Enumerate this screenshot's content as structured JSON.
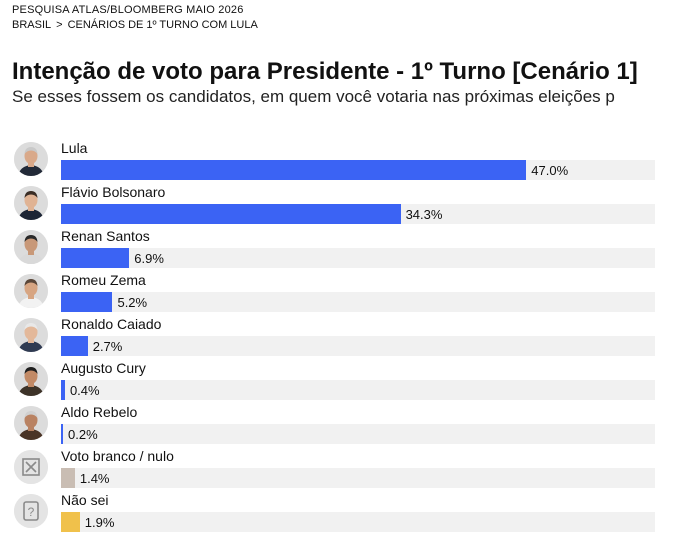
{
  "header": {
    "kicker": "PESQUISA ATLAS/BLOOMBERG MAIO 2026",
    "breadcrumb": [
      "BRASIL",
      ">",
      "CENÁRIOS DE 1º TURNO COM LULA"
    ]
  },
  "colors": {
    "candidate_bar": "#3b63f4",
    "blank_null_bar": "#c9bdb3",
    "dont_know_bar": "#f0c14b",
    "track": "#f1f1f1"
  },
  "chart_data": {
    "type": "bar",
    "orientation": "horizontal",
    "title": "Intenção de voto para Presidente - 1º Turno [Cenário 1]",
    "subtitle": "Se esses fossem os candidatos, em quem você votaria nas próximas eleições p",
    "unit": "%",
    "xlim": [
      0,
      60
    ],
    "grid": false,
    "legend": "none",
    "categories": [
      "Lula",
      "Flávio Bolsonaro",
      "Renan Santos",
      "Romeu Zema",
      "Ronaldo Caiado",
      "Augusto Cury",
      "Aldo Rebelo",
      "Voto branco / nulo",
      "Não sei"
    ],
    "values": [
      47.0,
      34.3,
      6.9,
      5.2,
      2.7,
      0.4,
      0.2,
      1.4,
      1.9
    ],
    "value_labels": [
      "47.0%",
      "34.3%",
      "6.9%",
      "5.2%",
      "2.7%",
      "0.4%",
      "0.2%",
      "1.4%",
      "1.9%"
    ],
    "icons": [
      "photo-lula-icon",
      "photo-flavio-bolsonaro-icon",
      "photo-renan-santos-icon",
      "photo-romeu-zema-icon",
      "photo-ronaldo-caiado-icon",
      "photo-augusto-cury-icon",
      "photo-aldo-rebelo-icon",
      "blank-vote-x-icon",
      "question-mark-icon"
    ],
    "bar_colors": [
      "#3b63f4",
      "#3b63f4",
      "#3b63f4",
      "#3b63f4",
      "#3b63f4",
      "#3b63f4",
      "#3b63f4",
      "#c9bdb3",
      "#f0c14b"
    ]
  }
}
